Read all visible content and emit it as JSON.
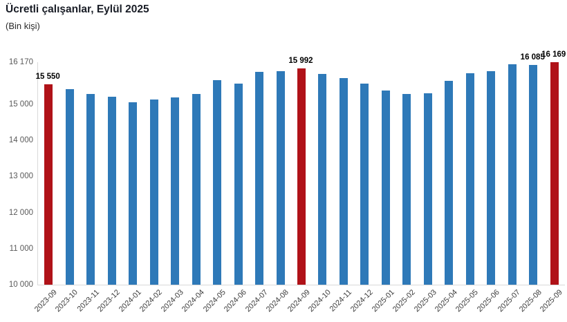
{
  "header": {
    "title": "Ücretli çalışanlar, Eylül 2025",
    "subtitle": "(Bin kişi)"
  },
  "colors": {
    "bar_default": "#2e79b8",
    "bar_highlight": "#b01218",
    "axis_line": "#d9d9d9",
    "y_tick_label": "#595959",
    "x_tick_label": "#3d3d3d",
    "data_label": "#000000"
  },
  "chart_data": {
    "type": "bar",
    "title": "Ücretli çalışanlar, Eylül 2025",
    "subtitle": "(Bin kişi)",
    "categories": [
      "2023-09",
      "2023-10",
      "2023-11",
      "2023-12",
      "2024-01",
      "2024-02",
      "2024-03",
      "2024-04",
      "2024-05",
      "2024-06",
      "2024-07",
      "2024-08",
      "2024-09",
      "2024-10",
      "2024-11",
      "2024-12",
      "2025-01",
      "2025-02",
      "2025-03",
      "2025-04",
      "2025-05",
      "2025-06",
      "2025-07",
      "2025-08",
      "2025-09"
    ],
    "values": [
      15550,
      15430,
      15285,
      15220,
      15060,
      15130,
      15200,
      15280,
      15675,
      15580,
      15905,
      15915,
      15992,
      15840,
      15730,
      15580,
      15390,
      15280,
      15300,
      15645,
      15870,
      15920,
      16120,
      16085,
      16169
    ],
    "highlight_indices": [
      0,
      12,
      24
    ],
    "data_labels": [
      {
        "index": 0,
        "text": "15 550"
      },
      {
        "index": 12,
        "text": "15 992"
      },
      {
        "index": 23,
        "text": "16 085"
      },
      {
        "index": 24,
        "text": "16 169"
      }
    ],
    "y_axis": {
      "min": 10000,
      "max": 16170,
      "ticks": [
        {
          "value": 16170,
          "label": "16 170"
        },
        {
          "value": 15000,
          "label": "15 000"
        },
        {
          "value": 14000,
          "label": "14 000"
        },
        {
          "value": 13000,
          "label": "13 000"
        },
        {
          "value": 12000,
          "label": "12 000"
        },
        {
          "value": 11000,
          "label": "11 000"
        },
        {
          "value": 10000,
          "label": "10 000"
        }
      ]
    },
    "grid": false,
    "legend": false
  }
}
